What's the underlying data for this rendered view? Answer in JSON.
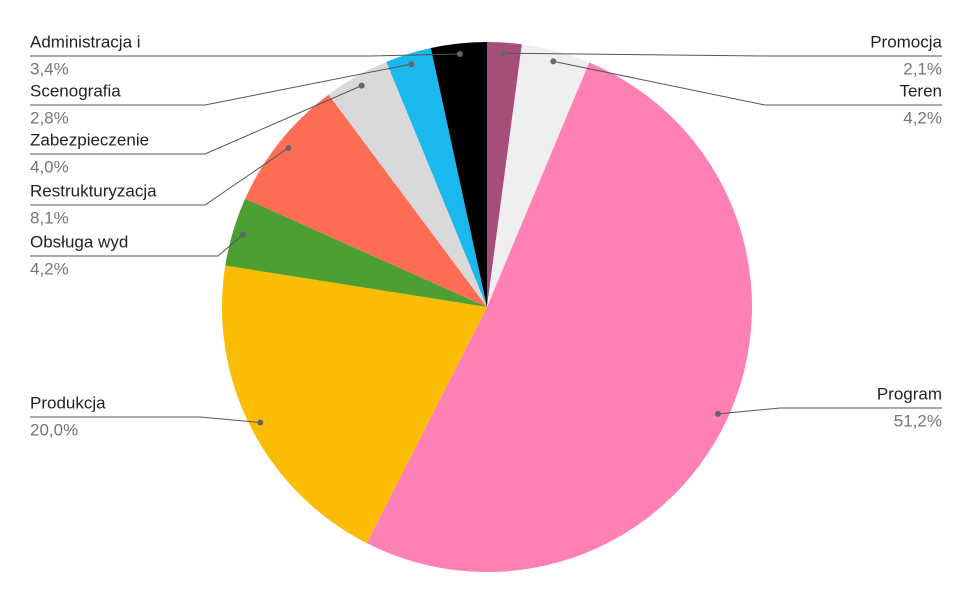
{
  "chart_data": {
    "type": "pie",
    "categories": [
      "Promocja",
      "Teren",
      "Program",
      "Produkcja",
      "Obsługa wyd",
      "Restrukturyzacja",
      "Zabezpieczenie",
      "Scenografia",
      "Administracja i"
    ],
    "values": [
      2.1,
      4.2,
      51.2,
      20.0,
      4.2,
      8.1,
      4.0,
      2.8,
      3.4
    ],
    "value_labels": [
      "2,1%",
      "4,2%",
      "51,2%",
      "20,0%",
      "4,2%",
      "8,1%",
      "4,0%",
      "2,8%",
      "3,4%"
    ],
    "colors": [
      "#a64d79",
      "#efefef",
      "#ff80b5",
      "#fbbc04",
      "#4e9f31",
      "#ff6d55",
      "#d9d9d9",
      "#1ab8ec",
      "#000000"
    ]
  }
}
